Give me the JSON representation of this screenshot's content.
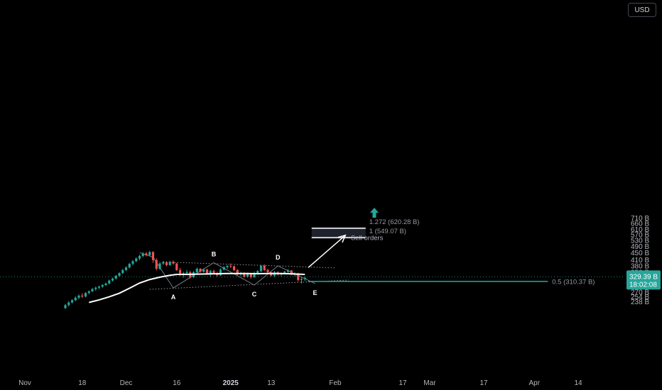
{
  "currency": "USD",
  "chart_data": {
    "type": "candlestick",
    "yaxis_scale": "log",
    "y_ticks": [
      {
        "v": 710,
        "label": "710 B"
      },
      {
        "v": 660,
        "label": "660 B"
      },
      {
        "v": 610,
        "label": "610 B"
      },
      {
        "v": 570,
        "label": "570 B"
      },
      {
        "v": 530,
        "label": "530 B"
      },
      {
        "v": 490,
        "label": "490 B"
      },
      {
        "v": 450,
        "label": "450 B"
      },
      {
        "v": 410,
        "label": "410 B"
      },
      {
        "v": 380,
        "label": "380 B"
      },
      {
        "v": 350,
        "label": "350 B"
      },
      {
        "v": 310,
        "label": "310 B"
      },
      {
        "v": 290,
        "label": "290 B"
      },
      {
        "v": 270,
        "label": "270 B"
      },
      {
        "v": 254,
        "label": "254 B"
      },
      {
        "v": 238,
        "label": "238 B"
      }
    ],
    "x_ticks": [
      {
        "d": 0,
        "label": "Nov",
        "bold": false
      },
      {
        "d": 17,
        "label": "18",
        "bold": false
      },
      {
        "d": 30,
        "label": "Dec",
        "bold": false
      },
      {
        "d": 45,
        "label": "16",
        "bold": false
      },
      {
        "d": 61,
        "label": "2025",
        "bold": true
      },
      {
        "d": 73,
        "label": "13",
        "bold": false
      },
      {
        "d": 92,
        "label": "Feb",
        "bold": false
      },
      {
        "d": 112,
        "label": "17",
        "bold": false
      },
      {
        "d": 120,
        "label": "Mar",
        "bold": false
      },
      {
        "d": 136,
        "label": "17",
        "bold": false
      },
      {
        "d": 151,
        "label": "Apr",
        "bold": false
      },
      {
        "d": 164,
        "label": "14",
        "bold": false
      }
    ],
    "candles": [
      [
        12,
        219,
        232,
        217,
        228
      ],
      [
        13,
        228,
        240,
        224,
        236
      ],
      [
        14,
        236,
        246,
        233,
        243
      ],
      [
        15,
        243,
        256,
        240,
        251
      ],
      [
        16,
        251,
        262,
        246,
        258
      ],
      [
        17,
        258,
        266,
        250,
        255
      ],
      [
        18,
        255,
        270,
        252,
        267
      ],
      [
        19,
        267,
        276,
        262,
        273
      ],
      [
        20,
        273,
        285,
        270,
        281
      ],
      [
        21,
        281,
        290,
        275,
        286
      ],
      [
        22,
        286,
        294,
        280,
        290
      ],
      [
        23,
        290,
        300,
        285,
        296
      ],
      [
        24,
        296,
        306,
        292,
        302
      ],
      [
        25,
        302,
        318,
        298,
        314
      ],
      [
        26,
        314,
        326,
        310,
        322
      ],
      [
        27,
        322,
        338,
        318,
        334
      ],
      [
        28,
        334,
        350,
        330,
        346
      ],
      [
        29,
        346,
        365,
        342,
        360
      ],
      [
        30,
        360,
        378,
        355,
        372
      ],
      [
        31,
        372,
        395,
        368,
        390
      ],
      [
        32,
        390,
        410,
        383,
        404
      ],
      [
        33,
        404,
        425,
        398,
        418
      ],
      [
        34,
        418,
        440,
        410,
        432
      ],
      [
        35,
        432,
        455,
        425,
        447
      ],
      [
        36,
        447,
        455,
        430,
        436
      ],
      [
        37,
        436,
        462,
        432,
        455
      ],
      [
        38,
        455,
        460,
        395,
        410
      ],
      [
        39,
        410,
        420,
        358,
        366
      ],
      [
        40,
        366,
        400,
        360,
        392
      ],
      [
        41,
        392,
        405,
        385,
        398
      ],
      [
        42,
        398,
        404,
        378,
        384
      ],
      [
        43,
        384,
        406,
        380,
        400
      ],
      [
        44,
        400,
        408,
        385,
        392
      ],
      [
        45,
        392,
        396,
        355,
        360
      ],
      [
        46,
        360,
        370,
        333,
        340
      ],
      [
        47,
        340,
        352,
        326,
        345
      ],
      [
        48,
        345,
        360,
        338,
        350
      ],
      [
        49,
        350,
        356,
        322,
        328
      ],
      [
        50,
        328,
        355,
        325,
        350
      ],
      [
        51,
        350,
        372,
        346,
        366
      ],
      [
        52,
        366,
        370,
        348,
        352
      ],
      [
        53,
        352,
        368,
        348,
        362
      ],
      [
        54,
        362,
        366,
        340,
        345
      ],
      [
        55,
        345,
        360,
        330,
        355
      ],
      [
        56,
        355,
        362,
        340,
        346
      ],
      [
        57,
        346,
        352,
        330,
        336
      ],
      [
        58,
        336,
        368,
        333,
        362
      ],
      [
        59,
        362,
        378,
        358,
        374
      ],
      [
        60,
        374,
        385,
        365,
        380
      ],
      [
        61,
        380,
        392,
        370,
        378
      ],
      [
        62,
        378,
        382,
        355,
        360
      ],
      [
        63,
        360,
        364,
        336,
        340
      ],
      [
        64,
        340,
        352,
        332,
        346
      ],
      [
        65,
        346,
        350,
        326,
        330
      ],
      [
        66,
        330,
        348,
        326,
        342
      ],
      [
        67,
        342,
        346,
        322,
        328
      ],
      [
        68,
        328,
        352,
        325,
        345
      ],
      [
        69,
        345,
        360,
        340,
        355
      ],
      [
        70,
        355,
        385,
        350,
        380
      ],
      [
        71,
        380,
        388,
        355,
        360
      ],
      [
        72,
        360,
        366,
        346,
        350
      ],
      [
        73,
        350,
        352,
        330,
        335
      ],
      [
        74,
        335,
        356,
        328,
        350
      ],
      [
        75,
        350,
        354,
        335,
        340
      ],
      [
        76,
        340,
        350,
        332,
        346
      ],
      [
        77,
        346,
        356,
        340,
        352
      ],
      [
        78,
        352,
        364,
        346,
        358
      ],
      [
        79,
        358,
        360,
        336,
        340
      ],
      [
        80,
        340,
        350,
        332,
        344
      ],
      [
        81,
        344,
        348,
        310,
        316
      ],
      [
        82,
        316,
        326,
        302,
        320
      ],
      [
        83,
        320,
        330,
        312,
        325
      ]
    ],
    "ma_line": [
      [
        19,
        236
      ],
      [
        22,
        244
      ],
      [
        25,
        254
      ],
      [
        28,
        266
      ],
      [
        31,
        284
      ],
      [
        34,
        304
      ],
      [
        37,
        318
      ],
      [
        40,
        328
      ],
      [
        43,
        336
      ],
      [
        45,
        340
      ],
      [
        48,
        340
      ],
      [
        51,
        341
      ],
      [
        54,
        342
      ],
      [
        57,
        343
      ],
      [
        60,
        344
      ],
      [
        63,
        344
      ],
      [
        66,
        344
      ],
      [
        69,
        343
      ],
      [
        72,
        344
      ],
      [
        75,
        344
      ],
      [
        78,
        343
      ],
      [
        81,
        341
      ],
      [
        83,
        340
      ]
    ],
    "points": [
      {
        "label": "A",
        "d": 44,
        "v": 285,
        "pos": "below"
      },
      {
        "label": "B",
        "d": 56,
        "v": 396,
        "pos": "above"
      },
      {
        "label": "C",
        "d": 68,
        "v": 296,
        "pos": "below"
      },
      {
        "label": "D",
        "d": 75,
        "v": 380,
        "pos": "above"
      },
      {
        "label": "E",
        "d": 86,
        "v": 302,
        "pos": "below"
      }
    ],
    "wave_path": [
      [
        34,
        452
      ],
      [
        38,
        425
      ],
      [
        44,
        285
      ],
      [
        56,
        396
      ],
      [
        68,
        296
      ],
      [
        75,
        380
      ],
      [
        86,
        302
      ]
    ],
    "upper_trendline": [
      [
        41,
        400
      ],
      [
        92,
        370
      ]
    ],
    "lower_trendline": [
      [
        37,
        280
      ],
      [
        96,
        316
      ]
    ],
    "target_box": {
      "d0": 85,
      "d1": 101,
      "v_low": 549.07,
      "v_high": 620.28
    },
    "annotations": {
      "fib_1272": "1.272 (620.28 B)",
      "fib_1": "1 (549.07 B)",
      "sell_orders": "Sell orders",
      "fib_05": "0.5 (310.37 B)"
    },
    "fib_05_value": 310.37,
    "arrow": {
      "from": [
        84,
        372
      ],
      "to": [
        95,
        566
      ]
    },
    "current_price": {
      "label": "329.39 B",
      "countdown": "18:02:08",
      "value": 329.39
    },
    "colors": {
      "up": "#26a69a",
      "down": "#ef5350",
      "ma": "#ffffff",
      "fib": "#22ab94",
      "priceTag": "#26a69a",
      "box": "#2a2e39"
    }
  }
}
